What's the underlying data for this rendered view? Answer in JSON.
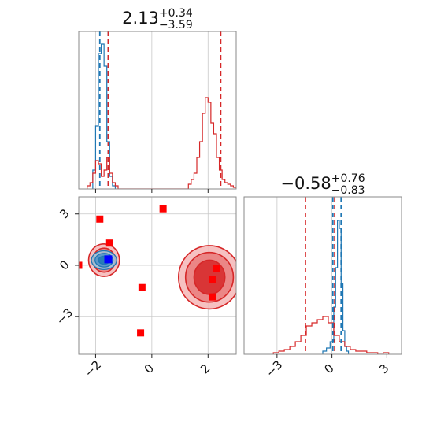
{
  "chart_data": [
    {
      "type": "histogram",
      "panel": "top-left",
      "title_main": "2.13",
      "title_sup": "+0.34",
      "title_sub": "−3.59",
      "xlim": [
        -2.6,
        3.0
      ],
      "ylim": [
        0,
        1.0
      ],
      "x_ticks": [
        -2,
        0,
        2
      ],
      "show_tick_labels": false,
      "grid": true,
      "series": [
        {
          "color": "#1f77b4",
          "bin_edges": [
            -2.1,
            -2.0,
            -1.9,
            -1.8,
            -1.7,
            -1.6,
            -1.5,
            -1.4,
            -1.3
          ],
          "counts": [
            0.12,
            0.4,
            0.86,
            0.92,
            0.78,
            0.3,
            0.08,
            0.02
          ]
        },
        {
          "color": "#d62728",
          "bin_edges": [
            -2.3,
            -2.2,
            -2.1,
            -2.0,
            -1.9,
            -1.8,
            -1.7,
            -1.6,
            -1.5,
            -1.4,
            -1.3,
            -1.2,
            1.3,
            1.4,
            1.5,
            1.6,
            1.7,
            1.8,
            1.9,
            2.0,
            2.1,
            2.2,
            2.3,
            2.4,
            2.5,
            2.6,
            2.7,
            2.8,
            2.9,
            3.0
          ],
          "counts": [
            0.02,
            0.04,
            0.1,
            0.18,
            0.16,
            0.08,
            0.12,
            0.2,
            0.1,
            0.04,
            0.02,
            0.0,
            0.03,
            0.06,
            0.1,
            0.2,
            0.3,
            0.48,
            0.58,
            0.55,
            0.42,
            0.35,
            0.2,
            0.12,
            0.06,
            0.04,
            0.03,
            0.02,
            0.01
          ]
        }
      ],
      "vlines_blue": [
        -1.85,
        -1.55
      ],
      "vlines_red": [
        -1.55,
        2.45
      ]
    },
    {
      "type": "contour",
      "panel": "bottom-left",
      "xlim": [
        -2.6,
        3.0
      ],
      "ylim": [
        -5.2,
        4.0
      ],
      "x_ticks": [
        -2,
        0,
        2
      ],
      "y_ticks": [
        3,
        0,
        -3
      ],
      "x_tick_labels": [
        "−2",
        "0",
        "2"
      ],
      "y_tick_labels": [
        "3",
        "0",
        "−3"
      ],
      "grid": true,
      "red_modes": [
        {
          "center": [
            -1.7,
            0.3
          ],
          "radii": [
            [
              0.55,
              0.95
            ],
            [
              0.4,
              0.7
            ],
            [
              0.25,
              0.45
            ]
          ]
        },
        {
          "center": [
            2.05,
            -0.7
          ],
          "radii": [
            [
              1.1,
              1.85
            ],
            [
              0.85,
              1.45
            ],
            [
              0.55,
              1.0
            ]
          ]
        }
      ],
      "blue_mode": {
        "center": [
          -1.7,
          0.3
        ],
        "radii": [
          [
            0.45,
            0.55
          ],
          [
            0.32,
            0.4
          ],
          [
            0.2,
            0.24
          ]
        ]
      },
      "markers_red": [
        [
          -1.85,
          2.7
        ],
        [
          -1.5,
          1.3
        ],
        [
          0.4,
          3.3
        ],
        [
          -0.35,
          -1.3
        ],
        [
          -0.4,
          -3.95
        ],
        [
          2.3,
          -0.2
        ],
        [
          2.15,
          -0.85
        ],
        [
          2.15,
          -1.85
        ],
        [
          -2.6,
          0.0
        ]
      ],
      "marker_blue": [
        -1.55,
        0.35
      ]
    },
    {
      "type": "histogram",
      "panel": "bottom-right",
      "title_main": "−0.58",
      "title_sup": "+0.76",
      "title_sub": "−0.83",
      "xlim": [
        -4.8,
        3.8
      ],
      "ylim": [
        0,
        1.0
      ],
      "x_ticks": [
        -3,
        0,
        3
      ],
      "x_tick_labels": [
        "−3",
        "0",
        "3"
      ],
      "grid": true,
      "series": [
        {
          "color": "#1f77b4",
          "bin_edges": [
            -0.5,
            -0.3,
            -0.1,
            0.1,
            0.2,
            0.3,
            0.4,
            0.5,
            0.6,
            0.7,
            0.8,
            0.9
          ],
          "counts": [
            0.02,
            0.04,
            0.08,
            0.3,
            0.55,
            0.85,
            0.8,
            0.45,
            0.15,
            0.05,
            0.02
          ]
        },
        {
          "color": "#d62728",
          "bin_edges": [
            -3.2,
            -2.9,
            -2.6,
            -2.3,
            -2.0,
            -1.7,
            -1.4,
            -1.1,
            -0.8,
            -0.5,
            -0.2,
            0.1,
            0.4,
            0.7,
            1.0,
            1.3,
            1.6,
            1.9,
            2.2,
            2.5,
            2.8,
            3.1
          ],
          "counts": [
            0.01,
            0.02,
            0.03,
            0.05,
            0.08,
            0.12,
            0.18,
            0.2,
            0.22,
            0.24,
            0.2,
            0.12,
            0.08,
            0.05,
            0.03,
            0.02,
            0.02,
            0.01,
            0.01,
            0.0,
            0.01
          ]
        }
      ],
      "vlines_blue": [
        0.05,
        0.5
      ],
      "vlines_red": [
        -1.45,
        0.15
      ]
    }
  ]
}
